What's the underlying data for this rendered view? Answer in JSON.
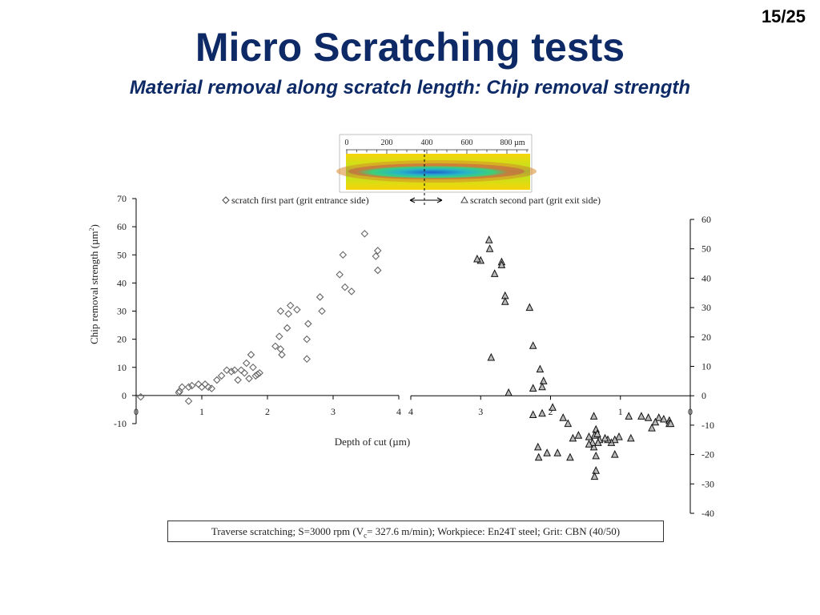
{
  "page_number": "15/25",
  "title": "Micro Scratching tests",
  "subtitle": "Material removal along scratch length: Chip removal strength",
  "caption": {
    "pre": "Traverse scratching; S=3000 rpm (V",
    "sub": "c",
    "post": "= 327.6 m/min); Workpiece: En24T steel; Grit: CBN (40/50)"
  },
  "inset": {
    "scale_ticks": [
      "0",
      "200",
      "400",
      "600",
      "800 µm"
    ]
  },
  "colors": {
    "title": "#0d2a66",
    "marker": "#666666",
    "triangle_fill": "#bbbbbb"
  },
  "chart_data": [
    {
      "type": "scatter",
      "title": "",
      "xlabel": "Depth of cut (µm)",
      "ylabel_pre": "Chip removal strength (µm",
      "ylabel_sup": "2",
      "ylabel_post": ")",
      "xlim": [
        0,
        4
      ],
      "ylim": [
        -10,
        70
      ],
      "x_ticks": [
        "0",
        "1",
        "2",
        "3",
        "4"
      ],
      "y_ticks": [
        "-10",
        "0",
        "10",
        "20",
        "30",
        "40",
        "50",
        "60",
        "70"
      ],
      "legend": "top",
      "series": [
        {
          "name": "scratch first part (grit entrance side)",
          "marker": "diamond",
          "points": [
            [
              0.07,
              -0.5
            ],
            [
              0.65,
              1
            ],
            [
              0.66,
              1.5
            ],
            [
              0.7,
              3
            ],
            [
              0.8,
              -2
            ],
            [
              0.8,
              3
            ],
            [
              0.85,
              3.5
            ],
            [
              0.95,
              4
            ],
            [
              1.0,
              3
            ],
            [
              1.05,
              4
            ],
            [
              1.1,
              3
            ],
            [
              1.15,
              2.5
            ],
            [
              1.23,
              5.5
            ],
            [
              1.3,
              7
            ],
            [
              1.38,
              9
            ],
            [
              1.45,
              8.5
            ],
            [
              1.5,
              9
            ],
            [
              1.55,
              5.5
            ],
            [
              1.6,
              9
            ],
            [
              1.65,
              8
            ],
            [
              1.68,
              11.5
            ],
            [
              1.72,
              6
            ],
            [
              1.75,
              14.5
            ],
            [
              1.78,
              10
            ],
            [
              1.82,
              7
            ],
            [
              1.85,
              7.5
            ],
            [
              1.88,
              8
            ],
            [
              2.12,
              17.5
            ],
            [
              2.18,
              21
            ],
            [
              2.2,
              16.5
            ],
            [
              2.22,
              14.5
            ],
            [
              2.2,
              30
            ],
            [
              2.3,
              24
            ],
            [
              2.32,
              29
            ],
            [
              2.35,
              32
            ],
            [
              2.45,
              30.5
            ],
            [
              2.6,
              13
            ],
            [
              2.6,
              20
            ],
            [
              2.62,
              25.5
            ],
            [
              2.8,
              35
            ],
            [
              2.83,
              30
            ],
            [
              3.1,
              43
            ],
            [
              3.15,
              50
            ],
            [
              3.18,
              38.5
            ],
            [
              3.28,
              37
            ],
            [
              3.48,
              57.5
            ],
            [
              3.65,
              49.5
            ],
            [
              3.68,
              51.5
            ],
            [
              3.68,
              44.5
            ]
          ]
        },
        {
          "name": "scratch second part (grit exit side)",
          "marker": "triangle",
          "xlim": [
            4,
            0
          ],
          "ylim": [
            -40,
            60
          ],
          "y_ticks": [
            "-40",
            "-30",
            "-20",
            "-10",
            "0",
            "10",
            "20",
            "30",
            "40",
            "50",
            "60"
          ],
          "x_ticks": [
            "4",
            "3",
            "2",
            "1",
            "0"
          ],
          "points": [
            [
              2.88,
              53
            ],
            [
              2.87,
              50
            ],
            [
              3.0,
              46
            ],
            [
              3.05,
              46.5
            ],
            [
              2.8,
              41.5
            ],
            [
              2.7,
              45.5
            ],
            [
              2.7,
              44.5
            ],
            [
              2.65,
              34
            ],
            [
              2.65,
              32
            ],
            [
              2.3,
              30
            ],
            [
              2.25,
              17
            ],
            [
              2.85,
              13
            ],
            [
              2.15,
              9
            ],
            [
              2.1,
              5
            ],
            [
              2.25,
              2.5
            ],
            [
              2.12,
              3
            ],
            [
              2.6,
              1
            ],
            [
              2.25,
              -6.5
            ],
            [
              2.12,
              -6
            ],
            [
              1.97,
              -4
            ],
            [
              1.82,
              -7.5
            ],
            [
              1.75,
              -9.5
            ],
            [
              1.38,
              -7
            ],
            [
              1.35,
              -11.5
            ],
            [
              1.38,
              -17.5
            ],
            [
              0.88,
              -7
            ],
            [
              0.7,
              -7
            ],
            [
              0.6,
              -7.5
            ],
            [
              0.45,
              -7.5
            ],
            [
              0.38,
              -8
            ],
            [
              0.3,
              -8.5
            ],
            [
              0.3,
              -9.5
            ],
            [
              0.5,
              -9
            ],
            [
              0.55,
              -11
            ],
            [
              0.28,
              -9.5
            ],
            [
              0.85,
              -14.5
            ],
            [
              1.02,
              -14
            ],
            [
              1.08,
              -15
            ],
            [
              1.13,
              -16
            ],
            [
              1.18,
              -15
            ],
            [
              1.22,
              -14.5
            ],
            [
              1.3,
              -15
            ],
            [
              1.32,
              -16
            ],
            [
              1.37,
              -13.5
            ],
            [
              1.33,
              -13
            ],
            [
              1.4,
              -16
            ],
            [
              1.45,
              -16.5
            ],
            [
              1.68,
              -14.5
            ],
            [
              1.6,
              -13.5
            ],
            [
              1.45,
              -14
            ],
            [
              1.08,
              -20
            ],
            [
              2.18,
              -17.5
            ],
            [
              2.17,
              -21
            ],
            [
              2.05,
              -19.5
            ],
            [
              1.9,
              -19.5
            ],
            [
              1.72,
              -21
            ],
            [
              1.35,
              -20.5
            ],
            [
              1.35,
              -25.5
            ],
            [
              1.37,
              -27.5
            ]
          ]
        }
      ]
    }
  ]
}
